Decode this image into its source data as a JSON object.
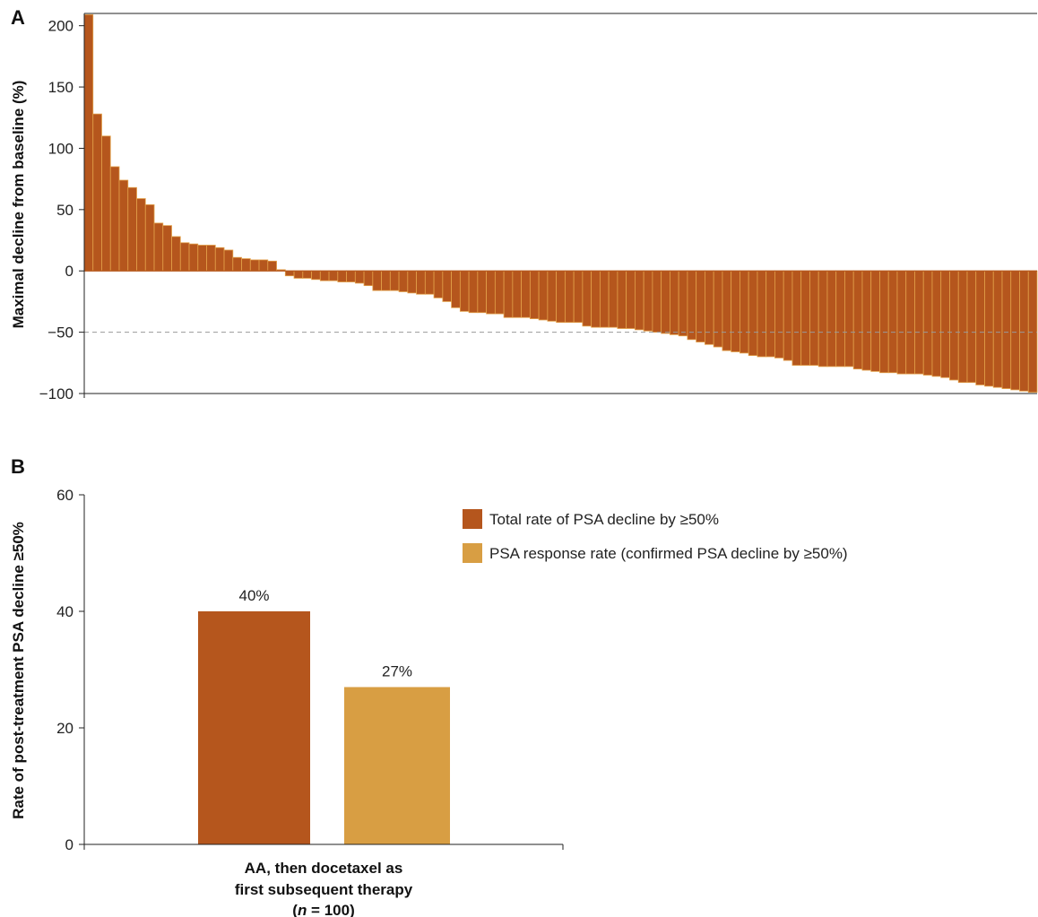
{
  "colors": {
    "dark_bar": "#B5561D",
    "light_bar": "#D89E43",
    "bar_edge": "#E2A04A",
    "reference_line": "#999999",
    "axis": "#222222"
  },
  "chart_data": [
    {
      "type": "bar",
      "panel_label": "A",
      "ylabel": "Maximal decline from baseline (%)",
      "xlabel": "",
      "ylim": [
        -100,
        210
      ],
      "yticks": [
        200,
        150,
        100,
        50,
        0,
        -50,
        -100
      ],
      "ytick_labels": [
        "200",
        "150",
        "100",
        "50",
        "0",
        "−50",
        "−100"
      ],
      "reference_line": -50,
      "values": [
        209,
        128,
        110,
        85,
        74,
        68,
        59,
        54,
        39,
        37,
        28,
        23,
        22,
        21,
        21,
        19,
        17,
        11,
        10,
        9,
        9,
        8,
        1,
        -4,
        -6,
        -6,
        -7,
        -8,
        -8,
        -9,
        -9,
        -10,
        -12,
        -16,
        -16,
        -16,
        -17,
        -18,
        -19,
        -19,
        -22,
        -25,
        -30,
        -33,
        -34,
        -34,
        -35,
        -35,
        -38,
        -38,
        -38,
        -39,
        -40,
        -41,
        -42,
        -42,
        -42,
        -45,
        -46,
        -46,
        -46,
        -47,
        -47,
        -48,
        -49,
        -50,
        -51,
        -52,
        -53,
        -56,
        -58,
        -60,
        -62,
        -65,
        -66,
        -67,
        -69,
        -70,
        -70,
        -71,
        -73,
        -77,
        -77,
        -77,
        -78,
        -78,
        -78,
        -78,
        -80,
        -81,
        -82,
        -83,
        -83,
        -84,
        -84,
        -84,
        -85,
        -86,
        -87,
        -89,
        -91,
        -91,
        -93,
        -94,
        -95,
        -96,
        -97,
        -98,
        -99
      ]
    },
    {
      "type": "bar",
      "panel_label": "B",
      "ylabel": "Rate of post-treatment PSA decline ≥50%",
      "xlabel": "",
      "ylim": [
        0,
        60
      ],
      "yticks": [
        0,
        20,
        40,
        60
      ],
      "ytick_labels": [
        "0",
        "20",
        "40",
        "60"
      ],
      "categories": [
        "AA, then docetaxel as first subsequent therapy (n = 100)"
      ],
      "category_label_lines": [
        "AA, then docetaxel as",
        "first subsequent therapy",
        "(n = 100)"
      ],
      "legend_position": "top-right",
      "series": [
        {
          "name": "Total rate of PSA decline by ≥50%",
          "values": [
            40
          ],
          "data_label": "40%",
          "color": "#B5561D"
        },
        {
          "name": "PSA response rate (confirmed PSA decline by ≥50%)",
          "values": [
            27
          ],
          "data_label": "27%",
          "color": "#D89E43"
        }
      ]
    }
  ]
}
